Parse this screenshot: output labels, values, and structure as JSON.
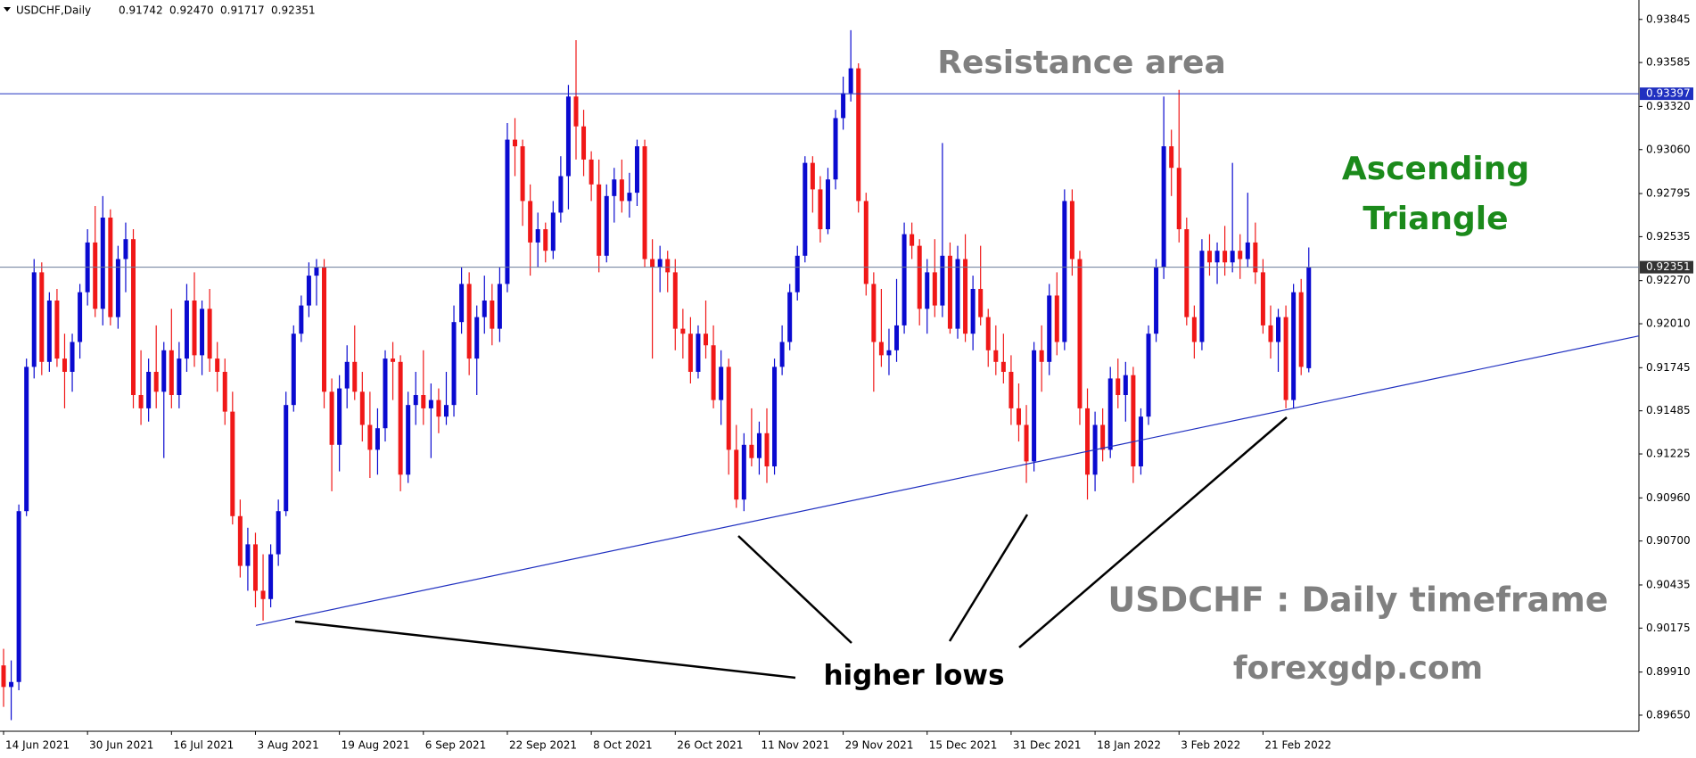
{
  "chart_data": {
    "type": "candlestick",
    "header": {
      "symbol": "USDCHF,Daily",
      "ohlc_labels": [
        "0.91742",
        "0.92470",
        "0.91717",
        "0.92351"
      ]
    },
    "bull_color": "#0a0ad0",
    "bear_color": "#f01818",
    "ylim": [
      0.89553,
      0.93962
    ],
    "yticks": [
      0.93845,
      0.93585,
      {
        "value": 0.9332,
        "label": "0.93320"
      },
      {
        "value": 0.9306,
        "label": "0.93060"
      },
      0.92795,
      0.92535,
      {
        "value": 0.9227,
        "label": "0.92270"
      },
      {
        "value": 0.9201,
        "label": "0.92010"
      },
      0.91745,
      0.91485,
      0.91225,
      {
        "value": 0.9096,
        "label": "0.90960"
      },
      {
        "value": 0.907,
        "label": "0.90700"
      },
      0.90435,
      0.90175,
      {
        "value": 0.8991,
        "label": "0.89910"
      },
      {
        "value": 0.8965,
        "label": "0.89650"
      }
    ],
    "price_lines": [
      {
        "value": 0.93397,
        "color": "#2030c0",
        "label_bg": "#2030c0"
      },
      {
        "value": 0.92351,
        "color": "#6a7a9a",
        "label_bg": "#333333"
      }
    ],
    "trendline": {
      "start": [
        34,
        0.902
      ],
      "end": [
        171,
        0.9152
      ],
      "color": "#2030c0"
    },
    "annotations": {
      "resistance": "Resistance area",
      "pattern": [
        "Ascending",
        "Triangle"
      ],
      "lows": "higher lows",
      "timeframe": "USDCHF : Daily timeframe",
      "site": "forexgdp.com"
    },
    "categories": [
      "14 Jun 2021",
      null,
      null,
      null,
      null,
      null,
      null,
      null,
      null,
      null,
      null,
      "30 Jun 2021",
      null,
      null,
      null,
      null,
      null,
      null,
      null,
      null,
      null,
      null,
      "16 Jul 2021",
      null,
      null,
      null,
      null,
      null,
      null,
      null,
      null,
      null,
      null,
      "3 Aug 2021",
      null,
      null,
      null,
      null,
      null,
      null,
      null,
      null,
      null,
      null,
      "19 Aug 2021",
      null,
      null,
      null,
      null,
      null,
      null,
      null,
      null,
      null,
      null,
      "6 Sep 2021",
      null,
      null,
      null,
      null,
      null,
      null,
      null,
      null,
      null,
      null,
      "22 Sep 2021",
      null,
      null,
      null,
      null,
      null,
      null,
      null,
      null,
      null,
      null,
      "8 Oct 2021",
      null,
      null,
      null,
      null,
      null,
      null,
      null,
      null,
      null,
      null,
      "26 Oct 2021",
      null,
      null,
      null,
      null,
      null,
      null,
      null,
      null,
      null,
      null,
      "11 Nov 2021",
      null,
      null,
      null,
      null,
      null,
      null,
      null,
      null,
      null,
      null,
      "29 Nov 2021",
      null,
      null,
      null,
      null,
      null,
      null,
      null,
      null,
      null,
      null,
      "15 Dec 2021",
      null,
      null,
      null,
      null,
      null,
      null,
      null,
      null,
      null,
      null,
      "31 Dec 2021",
      null,
      null,
      null,
      null,
      null,
      null,
      null,
      null,
      null,
      null,
      "18 Jan 2022",
      null,
      null,
      null,
      null,
      null,
      null,
      null,
      null,
      null,
      null,
      "3 Feb 2022",
      null,
      null,
      null,
      null,
      null,
      null,
      null,
      null,
      null,
      null,
      "21 Feb 2022",
      null,
      null,
      null,
      null,
      null,
      null
    ],
    "ohlc": [
      [
        0.8995,
        0.9005,
        0.897,
        0.8982
      ],
      [
        0.8982,
        0.8998,
        0.8962,
        0.8985
      ],
      [
        0.8985,
        0.9092,
        0.898,
        0.9088
      ],
      [
        0.9088,
        0.918,
        0.9085,
        0.9175
      ],
      [
        0.9175,
        0.924,
        0.9168,
        0.9232
      ],
      [
        0.9232,
        0.9238,
        0.917,
        0.9178
      ],
      [
        0.9178,
        0.922,
        0.9172,
        0.9215
      ],
      [
        0.9215,
        0.9222,
        0.9175,
        0.918
      ],
      [
        0.918,
        0.9195,
        0.915,
        0.9172
      ],
      [
        0.9172,
        0.9195,
        0.916,
        0.919
      ],
      [
        0.919,
        0.9225,
        0.918,
        0.922
      ],
      [
        0.922,
        0.9258,
        0.9212,
        0.925
      ],
      [
        0.925,
        0.9272,
        0.9205,
        0.921
      ],
      [
        0.921,
        0.9278,
        0.92,
        0.9265
      ],
      [
        0.9265,
        0.927,
        0.92,
        0.9205
      ],
      [
        0.9205,
        0.9248,
        0.9198,
        0.924
      ],
      [
        0.924,
        0.9262,
        0.922,
        0.9252
      ],
      [
        0.9252,
        0.9258,
        0.915,
        0.9158
      ],
      [
        0.9158,
        0.9185,
        0.914,
        0.915
      ],
      [
        0.915,
        0.918,
        0.9142,
        0.9172
      ],
      [
        0.9172,
        0.92,
        0.915,
        0.916
      ],
      [
        0.916,
        0.919,
        0.912,
        0.9185
      ],
      [
        0.9185,
        0.921,
        0.915,
        0.9158
      ],
      [
        0.9158,
        0.919,
        0.915,
        0.918
      ],
      [
        0.918,
        0.9225,
        0.9172,
        0.9215
      ],
      [
        0.9215,
        0.9232,
        0.9175,
        0.9182
      ],
      [
        0.9182,
        0.9215,
        0.917,
        0.921
      ],
      [
        0.921,
        0.9222,
        0.9172,
        0.918
      ],
      [
        0.918,
        0.919,
        0.916,
        0.9172
      ],
      [
        0.9172,
        0.918,
        0.914,
        0.9148
      ],
      [
        0.9148,
        0.916,
        0.908,
        0.9085
      ],
      [
        0.9085,
        0.9095,
        0.9048,
        0.9055
      ],
      [
        0.9055,
        0.9078,
        0.904,
        0.9068
      ],
      [
        0.9068,
        0.9075,
        0.903,
        0.904
      ],
      [
        0.904,
        0.9062,
        0.9022,
        0.9035
      ],
      [
        0.9035,
        0.9068,
        0.903,
        0.9062
      ],
      [
        0.9062,
        0.9095,
        0.9055,
        0.9088
      ],
      [
        0.9088,
        0.916,
        0.9085,
        0.9152
      ],
      [
        0.9152,
        0.92,
        0.9148,
        0.9195
      ],
      [
        0.9195,
        0.9218,
        0.919,
        0.9212
      ],
      [
        0.9212,
        0.9238,
        0.9205,
        0.923
      ],
      [
        0.923,
        0.924,
        0.9212,
        0.9235
      ],
      [
        0.9235,
        0.924,
        0.915,
        0.916
      ],
      [
        0.916,
        0.9168,
        0.91,
        0.9128
      ],
      [
        0.9128,
        0.917,
        0.9112,
        0.9162
      ],
      [
        0.9162,
        0.9188,
        0.915,
        0.9178
      ],
      [
        0.9178,
        0.92,
        0.9155,
        0.916
      ],
      [
        0.916,
        0.9172,
        0.913,
        0.914
      ],
      [
        0.914,
        0.916,
        0.9108,
        0.9125
      ],
      [
        0.9125,
        0.915,
        0.911,
        0.9138
      ],
      [
        0.9138,
        0.9185,
        0.913,
        0.918
      ],
      [
        0.918,
        0.919,
        0.9155,
        0.9178
      ],
      [
        0.9178,
        0.9182,
        0.91,
        0.911
      ],
      [
        0.911,
        0.916,
        0.9105,
        0.9152
      ],
      [
        0.9152,
        0.9172,
        0.914,
        0.9158
      ],
      [
        0.9158,
        0.9185,
        0.914,
        0.915
      ],
      [
        0.915,
        0.9165,
        0.912,
        0.9155
      ],
      [
        0.9155,
        0.9162,
        0.9135,
        0.9145
      ],
      [
        0.9145,
        0.9172,
        0.914,
        0.9152
      ],
      [
        0.9152,
        0.9212,
        0.9145,
        0.9202
      ],
      [
        0.9202,
        0.9235,
        0.9195,
        0.9225
      ],
      [
        0.9225,
        0.9232,
        0.917,
        0.918
      ],
      [
        0.918,
        0.9212,
        0.9158,
        0.9205
      ],
      [
        0.9205,
        0.923,
        0.9195,
        0.9215
      ],
      [
        0.9215,
        0.9225,
        0.9188,
        0.9198
      ],
      [
        0.9198,
        0.9235,
        0.919,
        0.9225
      ],
      [
        0.9225,
        0.9322,
        0.922,
        0.9312
      ],
      [
        0.9312,
        0.9325,
        0.929,
        0.9308
      ],
      [
        0.9308,
        0.9312,
        0.926,
        0.9275
      ],
      [
        0.9275,
        0.9285,
        0.923,
        0.925
      ],
      [
        0.925,
        0.9268,
        0.9235,
        0.9258
      ],
      [
        0.9258,
        0.9262,
        0.9238,
        0.9245
      ],
      [
        0.9245,
        0.9275,
        0.924,
        0.9268
      ],
      [
        0.9268,
        0.9302,
        0.9262,
        0.929
      ],
      [
        0.929,
        0.9345,
        0.927,
        0.9338
      ],
      [
        0.9338,
        0.9372,
        0.93,
        0.932
      ],
      [
        0.932,
        0.933,
        0.929,
        0.93
      ],
      [
        0.93,
        0.9305,
        0.9275,
        0.9285
      ],
      [
        0.9285,
        0.93,
        0.9232,
        0.9242
      ],
      [
        0.9242,
        0.9285,
        0.9238,
        0.9278
      ],
      [
        0.9278,
        0.9295,
        0.9262,
        0.9288
      ],
      [
        0.9288,
        0.93,
        0.9268,
        0.9275
      ],
      [
        0.9275,
        0.9292,
        0.9265,
        0.928
      ],
      [
        0.928,
        0.9312,
        0.9272,
        0.9308
      ],
      [
        0.9308,
        0.9312,
        0.9235,
        0.924
      ],
      [
        0.924,
        0.9252,
        0.918,
        0.9235
      ],
      [
        0.9235,
        0.9248,
        0.922,
        0.924
      ],
      [
        0.924,
        0.9245,
        0.922,
        0.9232
      ],
      [
        0.9232,
        0.924,
        0.9185,
        0.9198
      ],
      [
        0.9198,
        0.921,
        0.918,
        0.9195
      ],
      [
        0.9195,
        0.9205,
        0.9165,
        0.9172
      ],
      [
        0.9172,
        0.92,
        0.9168,
        0.9195
      ],
      [
        0.9195,
        0.9215,
        0.918,
        0.9188
      ],
      [
        0.9188,
        0.92,
        0.915,
        0.9155
      ],
      [
        0.9155,
        0.9185,
        0.914,
        0.9175
      ],
      [
        0.9175,
        0.918,
        0.911,
        0.9125
      ],
      [
        0.9125,
        0.914,
        0.909,
        0.9095
      ],
      [
        0.9095,
        0.9135,
        0.9088,
        0.9128
      ],
      [
        0.9128,
        0.915,
        0.9115,
        0.912
      ],
      [
        0.912,
        0.9142,
        0.911,
        0.9135
      ],
      [
        0.9135,
        0.915,
        0.9105,
        0.9115
      ],
      [
        0.9115,
        0.918,
        0.911,
        0.9175
      ],
      [
        0.9175,
        0.92,
        0.917,
        0.919
      ],
      [
        0.919,
        0.9225,
        0.9185,
        0.922
      ],
      [
        0.922,
        0.9248,
        0.9215,
        0.9242
      ],
      [
        0.9242,
        0.9302,
        0.9238,
        0.9298
      ],
      [
        0.9298,
        0.9302,
        0.9268,
        0.9282
      ],
      [
        0.9282,
        0.929,
        0.925,
        0.9258
      ],
      [
        0.9258,
        0.9295,
        0.9255,
        0.9288
      ],
      [
        0.9288,
        0.933,
        0.9282,
        0.9325
      ],
      [
        0.9325,
        0.935,
        0.9318,
        0.934
      ],
      [
        0.934,
        0.9378,
        0.9335,
        0.9355
      ],
      [
        0.9355,
        0.9358,
        0.9268,
        0.9275
      ],
      [
        0.9275,
        0.928,
        0.9218,
        0.9225
      ],
      [
        0.9225,
        0.9232,
        0.916,
        0.919
      ],
      [
        0.919,
        0.9222,
        0.9175,
        0.9182
      ],
      [
        0.9182,
        0.9198,
        0.917,
        0.9185
      ],
      [
        0.9185,
        0.9228,
        0.9178,
        0.92
      ],
      [
        0.92,
        0.9262,
        0.9195,
        0.9255
      ],
      [
        0.9255,
        0.9262,
        0.924,
        0.9248
      ],
      [
        0.9248,
        0.9252,
        0.92,
        0.921
      ],
      [
        0.921,
        0.924,
        0.9195,
        0.9232
      ],
      [
        0.9232,
        0.9252,
        0.9205,
        0.9212
      ],
      [
        0.9212,
        0.931,
        0.9205,
        0.9242
      ],
      [
        0.9242,
        0.925,
        0.9195,
        0.9198
      ],
      [
        0.9198,
        0.9248,
        0.9192,
        0.924
      ],
      [
        0.924,
        0.9255,
        0.919,
        0.9195
      ],
      [
        0.9195,
        0.923,
        0.9185,
        0.9222
      ],
      [
        0.9222,
        0.9248,
        0.92,
        0.9205
      ],
      [
        0.9205,
        0.921,
        0.9175,
        0.9185
      ],
      [
        0.9185,
        0.92,
        0.917,
        0.9178
      ],
      [
        0.9178,
        0.9195,
        0.9165,
        0.9172
      ],
      [
        0.9172,
        0.9182,
        0.914,
        0.915
      ],
      [
        0.915,
        0.9165,
        0.913,
        0.914
      ],
      [
        0.914,
        0.9152,
        0.9105,
        0.9118
      ],
      [
        0.9118,
        0.919,
        0.9112,
        0.9185
      ],
      [
        0.9185,
        0.92,
        0.916,
        0.9178
      ],
      [
        0.9178,
        0.9225,
        0.917,
        0.9218
      ],
      [
        0.9218,
        0.9232,
        0.9182,
        0.919
      ],
      [
        0.919,
        0.9282,
        0.9185,
        0.9275
      ],
      [
        0.9275,
        0.9282,
        0.923,
        0.924
      ],
      [
        0.924,
        0.9245,
        0.914,
        0.915
      ],
      [
        0.915,
        0.9162,
        0.9095,
        0.911
      ],
      [
        0.911,
        0.9148,
        0.91,
        0.914
      ],
      [
        0.914,
        0.915,
        0.9118,
        0.9125
      ],
      [
        0.9125,
        0.9175,
        0.912,
        0.9168
      ],
      [
        0.9168,
        0.918,
        0.915,
        0.9158
      ],
      [
        0.9158,
        0.9178,
        0.9142,
        0.917
      ],
      [
        0.917,
        0.9175,
        0.9105,
        0.9115
      ],
      [
        0.9115,
        0.915,
        0.911,
        0.9145
      ],
      [
        0.9145,
        0.92,
        0.914,
        0.9195
      ],
      [
        0.9195,
        0.924,
        0.919,
        0.9235
      ],
      [
        0.9235,
        0.9338,
        0.9228,
        0.9308
      ],
      [
        0.9308,
        0.9318,
        0.9278,
        0.9295
      ],
      [
        0.9295,
        0.9342,
        0.925,
        0.9258
      ],
      [
        0.9258,
        0.9265,
        0.92,
        0.9205
      ],
      [
        0.9205,
        0.9212,
        0.918,
        0.919
      ],
      [
        0.919,
        0.9252,
        0.9185,
        0.9245
      ],
      [
        0.9245,
        0.9255,
        0.923,
        0.9238
      ],
      [
        0.9238,
        0.925,
        0.9225,
        0.9245
      ],
      [
        0.9245,
        0.926,
        0.923,
        0.9238
      ],
      [
        0.9238,
        0.9298,
        0.9232,
        0.9245
      ],
      [
        0.9245,
        0.9255,
        0.9228,
        0.924
      ],
      [
        0.924,
        0.928,
        0.9235,
        0.925
      ],
      [
        0.925,
        0.9262,
        0.9225,
        0.9232
      ],
      [
        0.9232,
        0.924,
        0.9195,
        0.92
      ],
      [
        0.92,
        0.9212,
        0.918,
        0.919
      ],
      [
        0.919,
        0.921,
        0.9172,
        0.9205
      ],
      [
        0.9205,
        0.9212,
        0.915,
        0.9155
      ],
      [
        0.9155,
        0.9225,
        0.915,
        0.922
      ],
      [
        0.922,
        0.9228,
        0.917,
        0.9175
      ],
      [
        0.91742,
        0.9247,
        0.91717,
        0.92351
      ]
    ]
  }
}
